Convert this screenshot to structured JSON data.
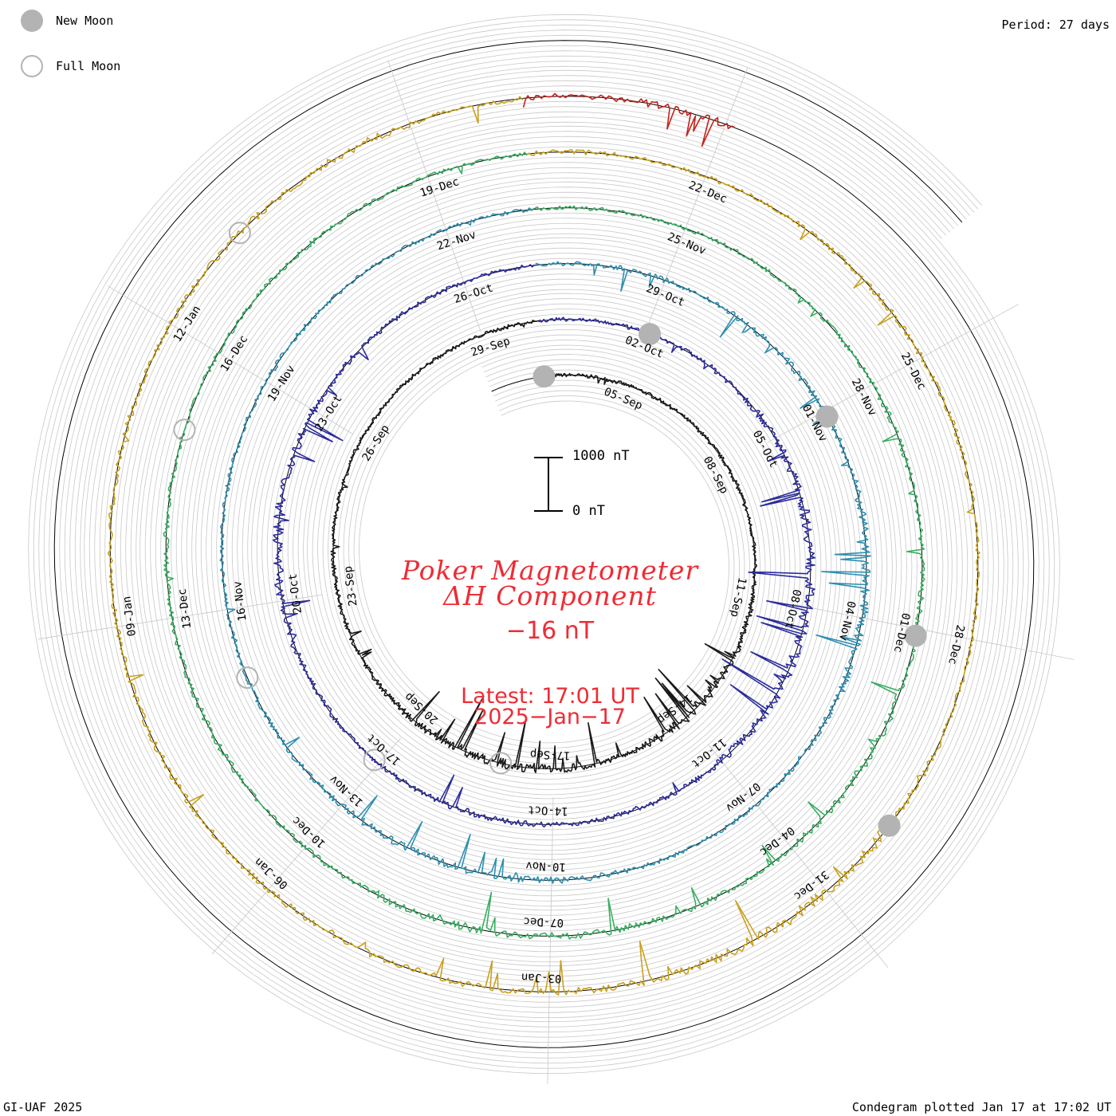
{
  "header": {
    "period": "Period: 27 days"
  },
  "legend": {
    "new_moon": "New Moon",
    "full_moon": "Full Moon"
  },
  "footer": {
    "credit": "GI-UAF 2025",
    "plotted": "Condegram plotted Jan 17 at 17:02 UT"
  },
  "scale": {
    "top": "1000 nT",
    "bottom": "0 nT"
  },
  "title": {
    "line1": "Poker Magnetometer",
    "line2": "ΔH Component",
    "current": "−16 nT",
    "latest": "Latest: 17:01 UT",
    "latest_date": "2025−Jan−17"
  },
  "colors": {
    "title_red": "#ee2c35",
    "moon_gray": "#b3b3b3",
    "grid_gray": "#c8c8c8"
  },
  "chart_data": {
    "type": "line",
    "title": "Poker Magnetometer ΔH Component",
    "period_days": 27,
    "scale_bar_nT": [
      0,
      1000
    ],
    "series": [
      {
        "start": "2024-09-03",
        "color": "#1a1a1a",
        "date_labels": [
          "05-Sep",
          "08-Sep",
          "11-Sep",
          "14-Sep",
          "17-Sep",
          "20-Sep",
          "23-Sep",
          "26-Sep",
          "29-Sep"
        ],
        "activity": [
          0.05,
          0.08,
          0.06,
          0.05,
          0.07,
          0.1,
          0.05,
          0.06,
          0.3,
          0.5,
          0.9,
          0.7,
          0.3,
          0.6,
          0.9,
          0.8,
          0.5,
          0.4,
          0.2,
          0.3,
          0.2,
          0.1,
          0.1,
          0.05,
          0.05,
          0.05,
          0.1
        ]
      },
      {
        "start": "2024-09-30",
        "color": "#2c2c9c",
        "date_labels": [
          "02-Oct",
          "05-Oct",
          "08-Oct",
          "11-Oct",
          "14-Oct",
          "17-Oct",
          "20-Oct",
          "23-Oct",
          "26-Oct"
        ],
        "activity": [
          0.1,
          0.1,
          0.15,
          0.3,
          0.5,
          0.6,
          0.9,
          0.9,
          0.8,
          1.0,
          0.6,
          0.3,
          0.2,
          0.15,
          0.3,
          0.4,
          0.2,
          0.2,
          0.3,
          0.5,
          0.8,
          0.9,
          0.6,
          0.3,
          0.2,
          0.1,
          0.1
        ]
      },
      {
        "start": "2024-10-27",
        "color": "#2f8fb0",
        "date_labels": [
          "29-Oct",
          "01-Nov",
          "04-Nov",
          "07-Nov",
          "10-Nov",
          "13-Nov",
          "16-Nov",
          "19-Nov",
          "22-Nov"
        ],
        "activity": [
          0.2,
          0.3,
          0.1,
          0.4,
          0.5,
          0.3,
          0.6,
          0.8,
          0.7,
          0.3,
          0.2,
          0.15,
          0.2,
          0.4,
          0.5,
          0.6,
          0.5,
          0.3,
          0.2,
          0.1,
          0.1,
          0.1,
          0.1,
          0.2,
          0.1,
          0.1,
          0.1
        ]
      },
      {
        "start": "2024-11-23",
        "color": "#3aae62",
        "date_labels": [
          "25-Nov",
          "28-Nov",
          "01-Dec",
          "04-Dec",
          "07-Dec",
          "10-Dec",
          "13-Dec",
          "16-Dec",
          "19-Dec"
        ],
        "activity": [
          0.1,
          0.1,
          0.1,
          0.1,
          0.2,
          0.3,
          0.2,
          0.3,
          0.4,
          0.5,
          0.4,
          0.3,
          0.4,
          0.5,
          0.6,
          0.5,
          0.3,
          0.2,
          0.3,
          0.2,
          0.3,
          0.2,
          0.1,
          0.2,
          0.2,
          0.1,
          0.1
        ]
      },
      {
        "start": "2024-12-20",
        "color": "#c9a020",
        "date_labels": [
          "22-Dec",
          "25-Dec",
          "28-Dec",
          "31-Dec",
          "03-Jan",
          "06-Jan",
          "09-Jan",
          "12-Jan"
        ],
        "activity": [
          0.2,
          0.1,
          0.1,
          0.2,
          0.3,
          0.2,
          0.1,
          0.1,
          0.1,
          0.3,
          0.9,
          1.0,
          0.7,
          0.5,
          0.4,
          0.5,
          0.4,
          0.3,
          0.4,
          0.3,
          0.2,
          0.3,
          0.2,
          0.3,
          0.4,
          0.5,
          0.3
        ]
      },
      {
        "start": "2025-01-16",
        "color": "#c0241c",
        "date_labels": [],
        "activity": [
          0.3,
          0.5
        ]
      }
    ],
    "new_moons": [
      "2024-09-03",
      "2024-10-02",
      "2024-11-01",
      "2024-12-01",
      "2024-12-30"
    ],
    "full_moons": [
      "2024-09-18",
      "2024-10-17",
      "2024-11-15",
      "2024-12-15",
      "2025-01-13"
    ],
    "grid": true
  }
}
